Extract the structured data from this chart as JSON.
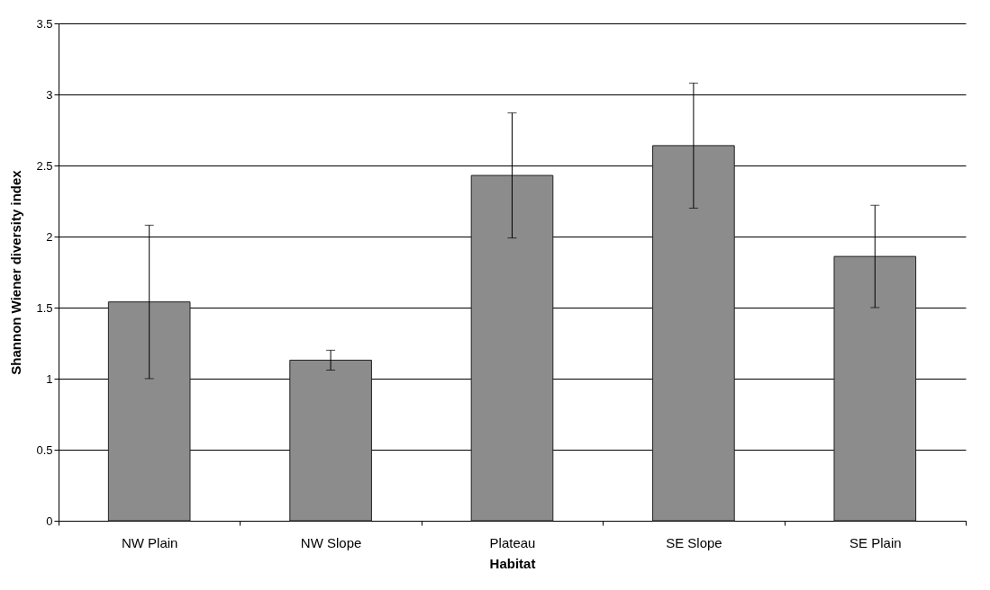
{
  "chart_data": {
    "type": "bar",
    "xlabel": "Habitat",
    "ylabel": "Shannon Wiener diversity index",
    "categories": [
      "NW Plain",
      "NW Slope",
      "Plateau",
      "SE Slope",
      "SE Plain"
    ],
    "values": [
      1.54,
      1.13,
      2.43,
      2.64,
      1.86
    ],
    "errors": [
      0.54,
      0.07,
      0.44,
      0.44,
      0.36
    ],
    "color": "#8c8c8c",
    "ylim": [
      0,
      3.5
    ],
    "yticks": [
      0,
      0.5,
      1,
      1.5,
      2,
      2.5,
      3,
      3.5
    ],
    "grid": "y"
  }
}
